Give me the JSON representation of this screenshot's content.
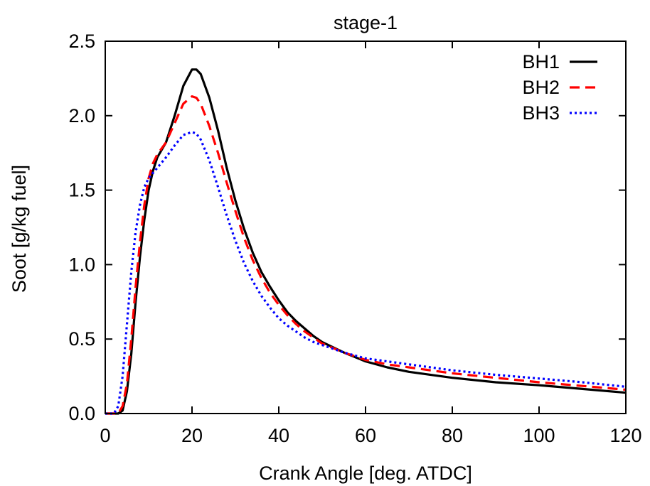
{
  "chart_data": {
    "type": "line",
    "title": "stage-1",
    "xlabel": "Crank Angle [deg. ATDC]",
    "ylabel": "Soot [g/kg fuel]",
    "xlim": [
      0,
      120
    ],
    "ylim": [
      0,
      2.5
    ],
    "x_ticks": [
      "0",
      "20",
      "40",
      "60",
      "80",
      "100",
      "120"
    ],
    "y_ticks": [
      "0.0",
      "0.5",
      "1.0",
      "1.5",
      "2.0",
      "2.5"
    ],
    "grid": false,
    "legend_position": "top-right",
    "series": [
      {
        "name": "BH1",
        "color": "#000000",
        "dash": "solid",
        "points": [
          [
            0,
            0
          ],
          [
            3,
            0
          ],
          [
            4,
            0.02
          ],
          [
            5,
            0.15
          ],
          [
            6,
            0.4
          ],
          [
            7,
            0.75
          ],
          [
            8,
            1.05
          ],
          [
            9,
            1.3
          ],
          [
            10,
            1.5
          ],
          [
            11,
            1.63
          ],
          [
            12,
            1.72
          ],
          [
            14,
            1.82
          ],
          [
            16,
            2.0
          ],
          [
            18,
            2.2
          ],
          [
            20,
            2.31
          ],
          [
            21,
            2.31
          ],
          [
            22,
            2.28
          ],
          [
            24,
            2.12
          ],
          [
            26,
            1.9
          ],
          [
            28,
            1.65
          ],
          [
            30,
            1.43
          ],
          [
            32,
            1.24
          ],
          [
            34,
            1.08
          ],
          [
            36,
            0.95
          ],
          [
            38,
            0.85
          ],
          [
            40,
            0.76
          ],
          [
            42,
            0.68
          ],
          [
            44,
            0.62
          ],
          [
            46,
            0.57
          ],
          [
            48,
            0.52
          ],
          [
            50,
            0.48
          ],
          [
            55,
            0.41
          ],
          [
            60,
            0.35
          ],
          [
            65,
            0.31
          ],
          [
            70,
            0.28
          ],
          [
            80,
            0.24
          ],
          [
            90,
            0.21
          ],
          [
            100,
            0.19
          ],
          [
            110,
            0.165
          ],
          [
            120,
            0.14
          ]
        ]
      },
      {
        "name": "BH2",
        "color": "#ff0000",
        "dash": "dashed",
        "points": [
          [
            0,
            0
          ],
          [
            3,
            0
          ],
          [
            4,
            0.05
          ],
          [
            5,
            0.2
          ],
          [
            6,
            0.5
          ],
          [
            7,
            0.85
          ],
          [
            8,
            1.15
          ],
          [
            9,
            1.4
          ],
          [
            10,
            1.58
          ],
          [
            11,
            1.68
          ],
          [
            12,
            1.74
          ],
          [
            14,
            1.82
          ],
          [
            16,
            1.95
          ],
          [
            18,
            2.08
          ],
          [
            20,
            2.13
          ],
          [
            21,
            2.12
          ],
          [
            22,
            2.08
          ],
          [
            24,
            1.93
          ],
          [
            26,
            1.75
          ],
          [
            28,
            1.55
          ],
          [
            30,
            1.36
          ],
          [
            32,
            1.18
          ],
          [
            34,
            1.03
          ],
          [
            36,
            0.91
          ],
          [
            38,
            0.81
          ],
          [
            40,
            0.73
          ],
          [
            42,
            0.66
          ],
          [
            44,
            0.6
          ],
          [
            46,
            0.55
          ],
          [
            48,
            0.51
          ],
          [
            50,
            0.47
          ],
          [
            55,
            0.41
          ],
          [
            60,
            0.36
          ],
          [
            65,
            0.33
          ],
          [
            70,
            0.31
          ],
          [
            80,
            0.27
          ],
          [
            90,
            0.24
          ],
          [
            100,
            0.21
          ],
          [
            110,
            0.185
          ],
          [
            120,
            0.16
          ]
        ]
      },
      {
        "name": "BH3",
        "color": "#0000ff",
        "dash": "dotted",
        "points": [
          [
            0,
            0
          ],
          [
            2,
            0
          ],
          [
            3,
            0.05
          ],
          [
            4,
            0.25
          ],
          [
            5,
            0.6
          ],
          [
            6,
            0.95
          ],
          [
            7,
            1.22
          ],
          [
            8,
            1.4
          ],
          [
            9,
            1.52
          ],
          [
            10,
            1.58
          ],
          [
            12,
            1.65
          ],
          [
            14,
            1.72
          ],
          [
            16,
            1.8
          ],
          [
            18,
            1.87
          ],
          [
            20,
            1.89
          ],
          [
            21,
            1.88
          ],
          [
            22,
            1.84
          ],
          [
            24,
            1.7
          ],
          [
            26,
            1.52
          ],
          [
            28,
            1.33
          ],
          [
            30,
            1.16
          ],
          [
            32,
            1.01
          ],
          [
            34,
            0.89
          ],
          [
            36,
            0.79
          ],
          [
            38,
            0.71
          ],
          [
            40,
            0.64
          ],
          [
            42,
            0.59
          ],
          [
            44,
            0.55
          ],
          [
            46,
            0.51
          ],
          [
            48,
            0.48
          ],
          [
            50,
            0.46
          ],
          [
            55,
            0.41
          ],
          [
            60,
            0.37
          ],
          [
            65,
            0.35
          ],
          [
            70,
            0.33
          ],
          [
            80,
            0.29
          ],
          [
            90,
            0.26
          ],
          [
            100,
            0.235
          ],
          [
            110,
            0.21
          ],
          [
            120,
            0.18
          ]
        ]
      }
    ]
  }
}
